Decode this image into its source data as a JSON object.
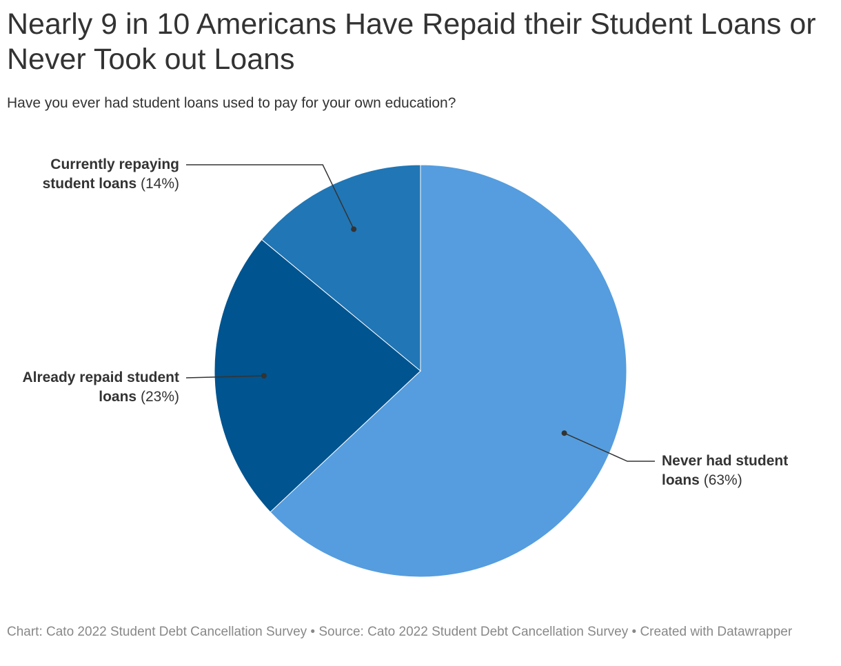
{
  "title": "Nearly 9 in 10 Americans Have Repaid their Student Loans or Never Took out Loans",
  "subtitle": "Have you ever had student loans used to pay for your own education?",
  "footer": "Chart: Cato 2022 Student Debt Cancellation Survey • Source: Cato 2022 Student Debt Cancellation Survey • Created with Datawrapper",
  "chart_data": {
    "type": "pie",
    "title": "Nearly 9 in 10 Americans Have Repaid their Student Loans or Never Took out Loans",
    "subtitle": "Have you ever had student loans used to pay for your own education?",
    "slices": [
      {
        "key": "never",
        "label": "Never had student loans",
        "value": 63,
        "value_label": "(63%)",
        "color": "#559dde"
      },
      {
        "key": "repaid",
        "label": "Already repaid student loans",
        "value": 23,
        "value_label": "(23%)",
        "color": "#00548f"
      },
      {
        "key": "repaying",
        "label": "Currently repaying student loans",
        "value": 14,
        "value_label": "(14%)",
        "color": "#2176b5"
      }
    ],
    "start_angle": "12 o'clock",
    "direction": "clockwise",
    "legend": "none (direct labels)"
  }
}
